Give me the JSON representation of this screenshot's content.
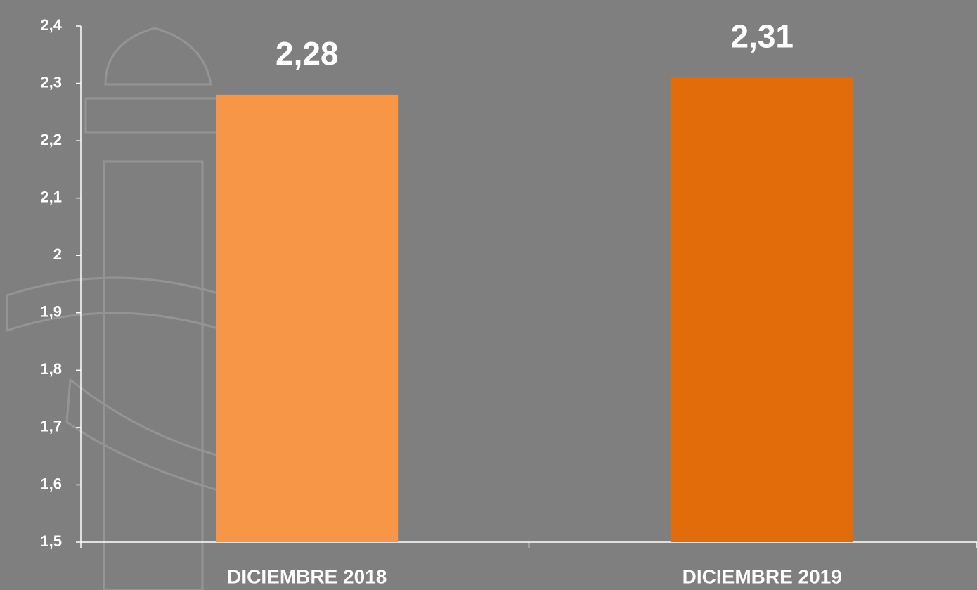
{
  "chart_data": {
    "type": "bar",
    "categories": [
      "DICIEMBRE 2018",
      "DICIEMBRE 2019"
    ],
    "values": [
      2.28,
      2.31
    ],
    "value_labels": [
      "2,28",
      "2,31"
    ],
    "colors": [
      "#f79646",
      "#e36c0a"
    ],
    "ylim": [
      1.5,
      2.4
    ],
    "yticks": [
      {
        "value": 1.5,
        "label": "1,5"
      },
      {
        "value": 1.6,
        "label": "1,6"
      },
      {
        "value": 1.7,
        "label": "1,7"
      },
      {
        "value": 1.8,
        "label": "1,8"
      },
      {
        "value": 1.9,
        "label": "1,9"
      },
      2,
      {
        "value": 2.1,
        "label": "2,1"
      },
      {
        "value": 2.2,
        "label": "2,2"
      },
      {
        "value": 2.3,
        "label": "2,3"
      },
      {
        "value": 2.4,
        "label": "2,4"
      }
    ]
  }
}
